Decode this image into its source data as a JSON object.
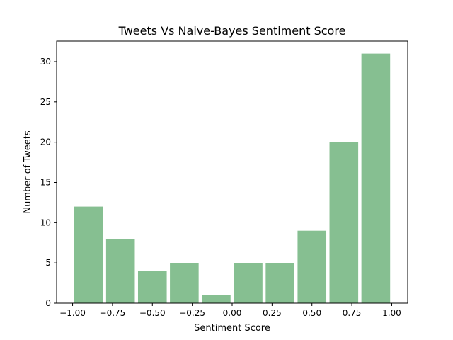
{
  "chart_data": {
    "type": "bar",
    "title": "Tweets Vs Naive-Bayes Sentiment Score",
    "xlabel": "Sentiment Score",
    "ylabel": "Number of Tweets",
    "bin_edges": [
      -1.0,
      -0.8,
      -0.6,
      -0.4,
      -0.2,
      0.0,
      0.2,
      0.4,
      0.6,
      0.8,
      1.0
    ],
    "values": [
      12,
      8,
      4,
      5,
      1,
      5,
      5,
      9,
      20,
      31
    ],
    "xlim": [
      -1.1,
      1.1
    ],
    "ylim": [
      0,
      32.55
    ],
    "xticks": [
      -1.0,
      -0.75,
      -0.5,
      -0.25,
      0.0,
      0.25,
      0.5,
      0.75,
      1.0
    ],
    "xtick_labels": [
      "−1.00",
      "−0.75",
      "−0.50",
      "−0.25",
      "0.00",
      "0.25",
      "0.50",
      "0.75",
      "1.00"
    ],
    "yticks": [
      0,
      5,
      10,
      15,
      20,
      25,
      30
    ],
    "ytick_labels": [
      "0",
      "5",
      "10",
      "15",
      "20",
      "25",
      "30"
    ],
    "bar_color": "#86bf91",
    "rwidth": 0.9,
    "grid": false,
    "legend": "none"
  }
}
